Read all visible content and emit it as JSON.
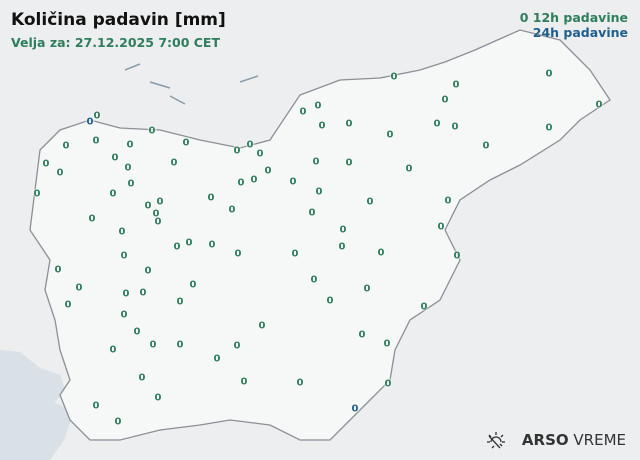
{
  "title": "Količina padavin [mm]",
  "subtitle": "Velja za: 27.12.2025 7:00 CET",
  "legend": {
    "marker_sample": "0",
    "item_12h": "12h padavine",
    "item_24h": "24h padavine"
  },
  "colors": {
    "h12": "#2e7d5c",
    "h24": "#1e5f8e",
    "border": "#8a9096",
    "sea": "#d9e1e6"
  },
  "logo": {
    "icon": "sun-weather-icon",
    "brand_bold": "ARSO",
    "brand_light": "VREME"
  },
  "stations": [
    {
      "value": "0",
      "type": "24h"
    },
    {
      "value": "0",
      "type": "24h"
    },
    {
      "value": "0",
      "type": "12h"
    },
    {
      "value": "0",
      "type": "12h"
    },
    {
      "value": "0",
      "type": "12h"
    },
    {
      "value": "0",
      "type": "12h"
    },
    {
      "value": "0",
      "type": "12h"
    },
    {
      "value": "0",
      "type": "12h"
    },
    {
      "value": "0",
      "type": "12h"
    },
    {
      "value": "0",
      "type": "12h"
    },
    {
      "value": "0",
      "type": "12h"
    },
    {
      "value": "0",
      "type": "12h"
    },
    {
      "value": "0",
      "type": "12h"
    },
    {
      "value": "0",
      "type": "12h"
    },
    {
      "value": "0",
      "type": "12h"
    },
    {
      "value": "0",
      "type": "12h"
    },
    {
      "value": "0",
      "type": "12h"
    },
    {
      "value": "0",
      "type": "12h"
    },
    {
      "value": "0",
      "type": "12h"
    },
    {
      "value": "0",
      "type": "12h"
    },
    {
      "value": "0",
      "type": "12h"
    },
    {
      "value": "0",
      "type": "12h"
    },
    {
      "value": "0",
      "type": "12h"
    },
    {
      "value": "0",
      "type": "12h"
    },
    {
      "value": "0",
      "type": "12h"
    },
    {
      "value": "0",
      "type": "12h"
    },
    {
      "value": "0",
      "type": "12h"
    },
    {
      "value": "0",
      "type": "12h"
    },
    {
      "value": "0",
      "type": "12h"
    },
    {
      "value": "0",
      "type": "12h"
    },
    {
      "value": "0",
      "type": "12h"
    },
    {
      "value": "0",
      "type": "12h"
    },
    {
      "value": "0",
      "type": "12h"
    },
    {
      "value": "0",
      "type": "12h"
    },
    {
      "value": "0",
      "type": "12h"
    },
    {
      "value": "0",
      "type": "12h"
    },
    {
      "value": "0",
      "type": "12h"
    },
    {
      "value": "0",
      "type": "12h"
    },
    {
      "value": "0",
      "type": "12h"
    },
    {
      "value": "0",
      "type": "12h"
    },
    {
      "value": "0",
      "type": "12h"
    },
    {
      "value": "0",
      "type": "12h"
    },
    {
      "value": "0",
      "type": "12h"
    },
    {
      "value": "0",
      "type": "12h"
    },
    {
      "value": "0",
      "type": "12h"
    },
    {
      "value": "0",
      "type": "12h"
    },
    {
      "value": "0",
      "type": "12h"
    },
    {
      "value": "0",
      "type": "12h"
    },
    {
      "value": "0",
      "type": "12h"
    },
    {
      "value": "0",
      "type": "12h"
    },
    {
      "value": "0",
      "type": "12h"
    },
    {
      "value": "0",
      "type": "12h"
    },
    {
      "value": "0",
      "type": "12h"
    },
    {
      "value": "0",
      "type": "12h"
    },
    {
      "value": "0",
      "type": "12h"
    },
    {
      "value": "0",
      "type": "12h"
    },
    {
      "value": "0",
      "type": "12h"
    },
    {
      "value": "0",
      "type": "12h"
    },
    {
      "value": "0",
      "type": "12h"
    },
    {
      "value": "0",
      "type": "12h"
    },
    {
      "value": "0",
      "type": "12h"
    },
    {
      "value": "0",
      "type": "12h"
    },
    {
      "value": "0",
      "type": "12h"
    },
    {
      "value": "0",
      "type": "12h"
    },
    {
      "value": "0",
      "type": "12h"
    },
    {
      "value": "0",
      "type": "12h"
    },
    {
      "value": "0",
      "type": "12h"
    },
    {
      "value": "0",
      "type": "12h"
    },
    {
      "value": "0",
      "type": "12h"
    },
    {
      "value": "0",
      "type": "12h"
    },
    {
      "value": "0",
      "type": "12h"
    },
    {
      "value": "0",
      "type": "12h"
    },
    {
      "value": "0",
      "type": "12h"
    },
    {
      "value": "0",
      "type": "12h"
    },
    {
      "value": "0",
      "type": "12h"
    },
    {
      "value": "0",
      "type": "12h"
    },
    {
      "value": "0",
      "type": "12h"
    },
    {
      "value": "0",
      "type": "12h"
    },
    {
      "value": "0",
      "type": "12h"
    },
    {
      "value": "0",
      "type": "12h"
    },
    {
      "value": "0",
      "type": "12h"
    },
    {
      "value": "0",
      "type": "12h"
    },
    {
      "value": "0",
      "type": "12h"
    },
    {
      "value": "0",
      "type": "12h"
    },
    {
      "value": "0",
      "type": "12h"
    },
    {
      "value": "0",
      "type": "12h"
    },
    {
      "value": "0",
      "type": "12h"
    },
    {
      "value": "0",
      "type": "12h"
    },
    {
      "value": "0",
      "type": "12h"
    },
    {
      "value": "0",
      "type": "12h"
    },
    {
      "value": "0",
      "type": "12h"
    },
    {
      "value": "0",
      "type": "12h"
    },
    {
      "value": "0",
      "type": "12h"
    },
    {
      "value": "0",
      "type": "12h"
    },
    {
      "value": "0",
      "type": "12h"
    },
    {
      "value": "0",
      "type": "12h"
    },
    {
      "value": "0",
      "type": "12h"
    },
    {
      "value": "0",
      "type": "12h"
    },
    {
      "value": "0",
      "type": "12h"
    },
    {
      "value": "0",
      "type": "12h"
    },
    {
      "value": "0",
      "type": "12h"
    },
    {
      "value": "0",
      "type": "12h"
    }
  ]
}
